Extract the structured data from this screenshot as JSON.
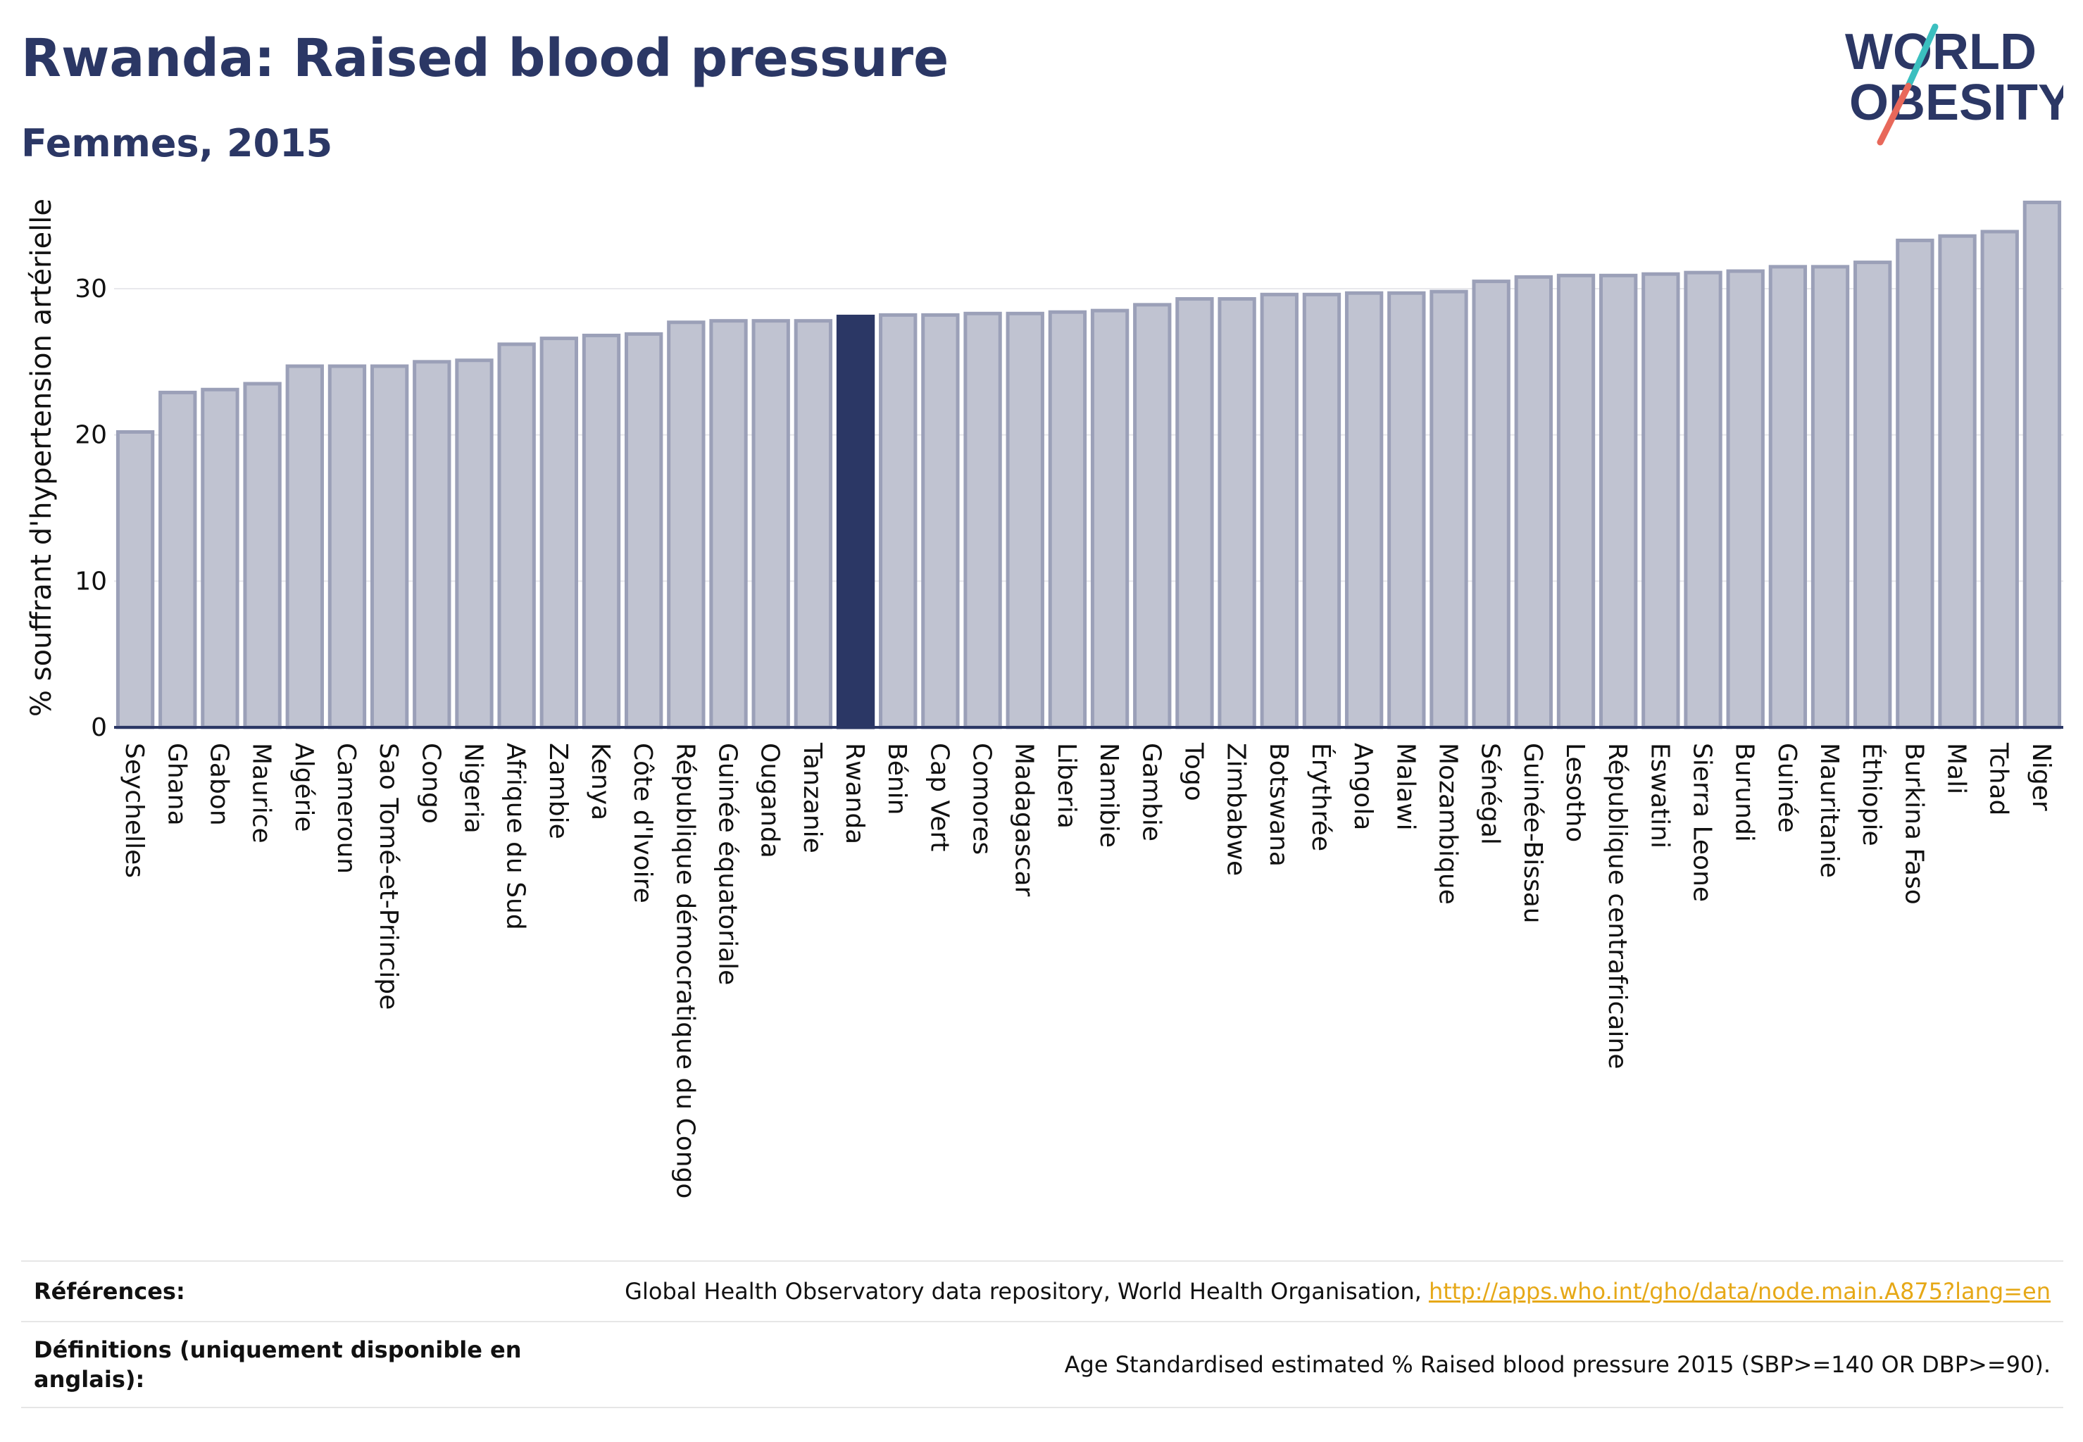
{
  "header": {
    "title": "Rwanda: Raised blood pressure",
    "subtitle": "Femmes, 2015"
  },
  "logo": {
    "line1": "WORLD",
    "line2": "OBESITY",
    "colors": {
      "text": "#2b3765",
      "slash_top": "#3bbfbf",
      "slash_bottom": "#e8685a"
    }
  },
  "chart_data": {
    "type": "bar",
    "title": "",
    "xlabel": "",
    "ylabel": "% souffrant d'hypertension artérielle",
    "ylim": [
      0,
      36.5
    ],
    "yticks": [
      0,
      10,
      20,
      30
    ],
    "grid": true,
    "highlight": "Rwanda",
    "colors": {
      "bar": "#c0c3d1",
      "bar_edge": "#9ba0b8",
      "highlight": "#2b3765",
      "axis": "#2b3765"
    },
    "categories": [
      "Seychelles",
      "Ghana",
      "Gabon",
      "Maurice",
      "Algérie",
      "Cameroun",
      "Sao Tomé-et-Principe",
      "Congo",
      "Nigeria",
      "Afrique du Sud",
      "Zambie",
      "Kenya",
      "Côte d'Ivoire",
      "République démocratique du Congo",
      "Guinée équatoriale",
      "Ouganda",
      "Tanzanie",
      "Rwanda",
      "Bénin",
      "Cap Vert",
      "Comores",
      "Madagascar",
      "Liberia",
      "Namibie",
      "Gambie",
      "Togo",
      "Zimbabwe",
      "Botswana",
      "Érythrée",
      "Angola",
      "Malawi",
      "Mozambique",
      "Sénégal",
      "Guinée-Bissau",
      "Lesotho",
      "République centrafricaine",
      "Eswatini",
      "Sierra Leone",
      "Burundi",
      "Guinée",
      "Mauritanie",
      "Éthiopie",
      "Burkina Faso",
      "Mali",
      "Tchad",
      "Niger"
    ],
    "values": [
      20.2,
      22.9,
      23.1,
      23.5,
      24.7,
      24.7,
      24.7,
      25.0,
      25.1,
      26.2,
      26.6,
      26.8,
      26.9,
      27.7,
      27.8,
      27.8,
      27.8,
      28.1,
      28.2,
      28.2,
      28.3,
      28.3,
      28.4,
      28.5,
      28.9,
      29.3,
      29.3,
      29.6,
      29.6,
      29.7,
      29.7,
      29.8,
      30.5,
      30.8,
      30.9,
      30.9,
      31.0,
      31.1,
      31.2,
      31.5,
      31.5,
      31.8,
      33.3,
      33.6,
      33.9,
      35.9
    ]
  },
  "references": {
    "ref_label": "Références:",
    "ref_text": "Global Health Observatory data repository, World Health Organisation, ",
    "ref_link": "http://apps.who.int/gho/data/node.main.A875?lang=en",
    "def_label": "Définitions (uniquement disponible en anglais):",
    "def_text": "Age Standardised estimated % Raised blood pressure 2015 (SBP>=140 OR DBP>=90)."
  }
}
